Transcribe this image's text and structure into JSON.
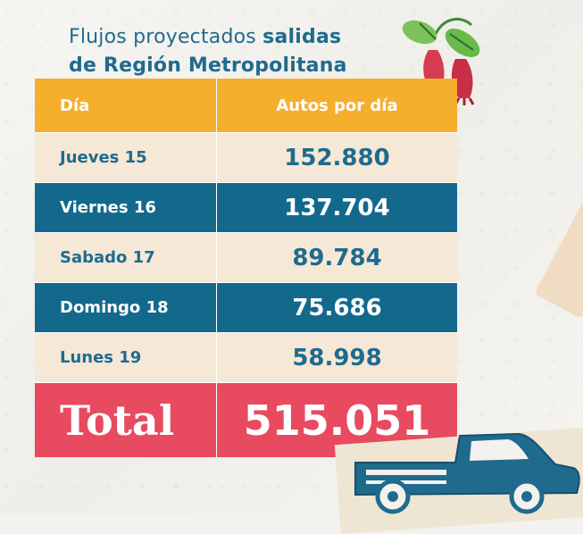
{
  "title": {
    "line1_light": "Flujos proyectados ",
    "line1_bold": "salidas",
    "line2": "de Región Metropolitana"
  },
  "table": {
    "headers": {
      "day": "Día",
      "value": "Autos por día"
    },
    "rows": [
      {
        "day": "Jueves 15",
        "value": "152.880"
      },
      {
        "day": "Viernes 16",
        "value": "137.704"
      },
      {
        "day": "Sabado 17",
        "value": "89.784"
      },
      {
        "day": "Domingo 18",
        "value": "75.686"
      },
      {
        "day": "Lunes 19",
        "value": "58.998"
      }
    ],
    "total": {
      "label": "Total",
      "value": "515.051"
    }
  },
  "colors": {
    "header": "#f6ae2d",
    "light_row": "#f5e8d6",
    "dark_row": "#13698c",
    "total": "#e84a5f",
    "title": "#1f6b8e"
  },
  "icons": [
    "copihue-flower-icon",
    "pickup-truck-icon"
  ]
}
